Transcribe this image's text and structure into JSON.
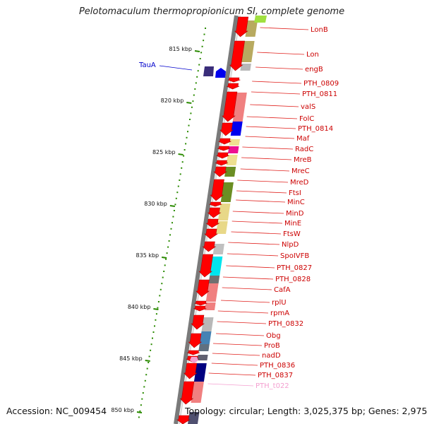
{
  "title": "Pelotomaculum thermopropionicum SI, complete genome",
  "footer": {
    "accession": "Accession: NC_009454",
    "topology": "Topology: circular; Length: 3,025,375 bp; Genes: 2,975"
  },
  "ticks": [
    "815 kbp",
    "820 kbp",
    "825 kbp",
    "830 kbp",
    "835 kbp",
    "840 kbp",
    "845 kbp",
    "850 kbp"
  ],
  "genes_reverse": [
    "TauA"
  ],
  "genes_forward": [
    "LonB",
    "Lon",
    "engB",
    "PTH_0809",
    "PTH_0811",
    "valS",
    "FolC",
    "PTH_0814",
    "Maf",
    "RadC",
    "MreB",
    "MreC",
    "MreD",
    "FtsI",
    "MinC",
    "MinD",
    "MinE",
    "FtsW",
    "NlpD",
    "SpoIVFB",
    "PTH_0827",
    "PTH_0828",
    "CafA",
    "rplU",
    "rpmA",
    "PTH_0832",
    "Obg",
    "ProB",
    "nadD",
    "PTH_0836",
    "PTH_0837",
    "PTH_t022"
  ],
  "colors": {
    "gene": "#ff0000",
    "label_line": "#e0201c",
    "label_text": "#cc0000",
    "reverse_label": "#0000cc",
    "trna": "#f4a0d0",
    "tick": "#2a8a00",
    "backbone": "#808080"
  }
}
